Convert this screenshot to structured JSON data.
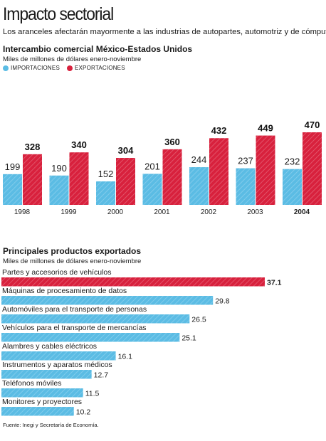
{
  "header": {
    "title": "Impacto sectorial",
    "subtitle": "Los aranceles afectarán mayormente a las industrias de autopartes, automotriz y de cómputo."
  },
  "footer": {
    "source": "Fuente: Inegi y Secretaría de Economía."
  },
  "colors": {
    "importaciones": "#5bbce4",
    "exportaciones": "#d8213d",
    "highlight_bar": "#d8213d",
    "product_bar": "#5bbce4"
  },
  "chart_data": [
    {
      "type": "bar",
      "title": "Intercambio comercial México-Estados Unidos",
      "units": "Miles de millones de dólares enero-noviembre",
      "categories": [
        "1998",
        "1999",
        "2000",
        "2001",
        "2002",
        "2003",
        "2004"
      ],
      "bold_category": "2004",
      "legend_position": "top-left",
      "ylim": [
        0,
        470
      ],
      "series": [
        {
          "name": "IMPORTACIONES",
          "values": [
            199,
            190,
            152,
            201,
            244,
            237,
            232
          ]
        },
        {
          "name": "EXPORTACIONES",
          "values": [
            328,
            340,
            304,
            360,
            432,
            449,
            470
          ]
        }
      ]
    },
    {
      "type": "bar",
      "orientation": "horizontal",
      "title": "Principales productos exportados",
      "units": "Miles de millones de dólares enero-noviembre",
      "categories": [
        "Partes y accesorios de vehículos",
        "Máquinas de procesamiento de datos",
        "Automóviles para el transporte de personas",
        "Vehículos para el transporte de mercancías",
        "Alambres y cables eléctricos",
        "Instrumentos y aparatos médicos",
        "Teléfonos móviles",
        "Monitores y proyectores"
      ],
      "values": [
        37.1,
        29.8,
        26.5,
        25.1,
        16.1,
        12.7,
        11.5,
        10.2
      ],
      "value_labels": [
        "37.1",
        "29.8",
        "26.5",
        "25.1",
        "16.1",
        "12.7",
        "11.5",
        "10.2"
      ]
    }
  ]
}
